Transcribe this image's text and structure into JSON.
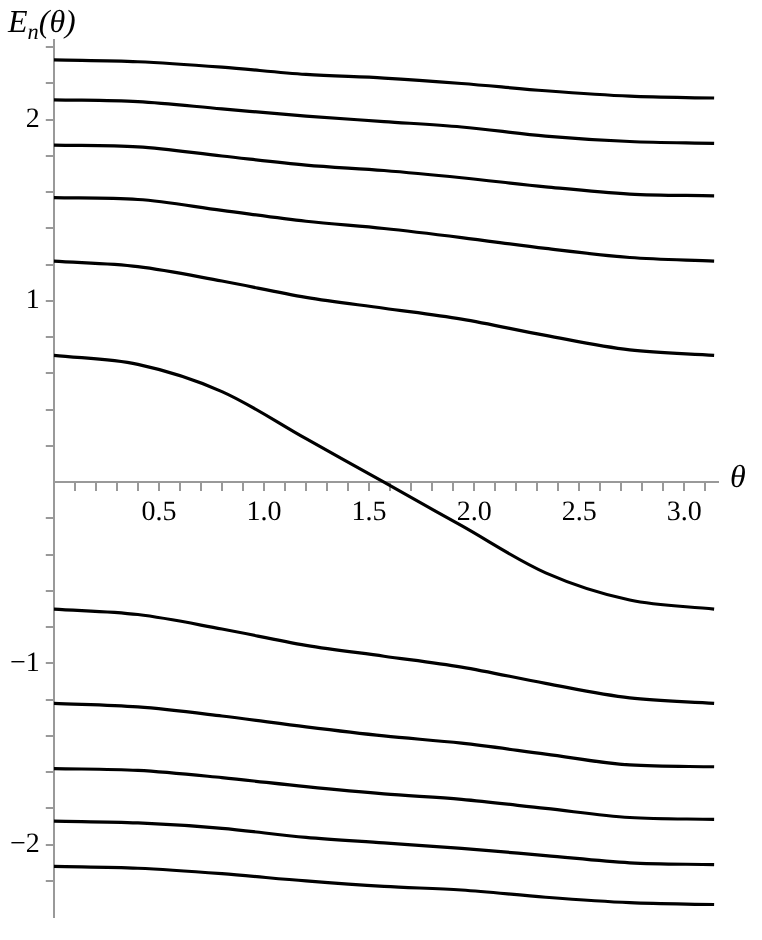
{
  "chart_data": {
    "type": "line",
    "xlabel": "θ",
    "ylabel": "E$_{n}$(θ)",
    "marker": "none",
    "line_style": "solid",
    "x": [
      0,
      0.4,
      0.8,
      1.2,
      1.5708,
      1.94,
      2.34,
      2.74,
      3.1416
    ],
    "xlim": [
      0,
      3.16
    ],
    "ylim": [
      -2.4,
      2.44
    ],
    "xticks": [
      {
        "value": 0.1,
        "label": null
      },
      {
        "value": 0.2,
        "label": null
      },
      {
        "value": 0.3,
        "label": null
      },
      {
        "value": 0.4,
        "label": null
      },
      0.5,
      {
        "value": 0.6,
        "label": null
      },
      {
        "value": 0.7,
        "label": null
      },
      {
        "value": 0.8,
        "label": null
      },
      {
        "value": 0.9,
        "label": null
      },
      {
        "value": 1,
        "label": "1.0"
      },
      {
        "value": 1.1,
        "label": null
      },
      {
        "value": 1.2,
        "label": null
      },
      {
        "value": 1.3,
        "label": null
      },
      {
        "value": 1.4,
        "label": null
      },
      1.5,
      {
        "value": 1.6,
        "label": null
      },
      {
        "value": 1.7,
        "label": null
      },
      {
        "value": 1.8,
        "label": null
      },
      {
        "value": 1.9,
        "label": null
      },
      {
        "value": 2,
        "label": "2.0"
      },
      {
        "value": 2.1,
        "label": null
      },
      {
        "value": 2.2,
        "label": null
      },
      {
        "value": 2.3,
        "label": null
      },
      {
        "value": 2.4,
        "label": null
      },
      2.5,
      {
        "value": 2.6,
        "label": null
      },
      {
        "value": 2.7,
        "label": null
      },
      {
        "value": 2.8,
        "label": null
      },
      {
        "value": 2.9,
        "label": null
      },
      {
        "value": 3,
        "label": "3.0"
      },
      {
        "value": 3.1,
        "label": null
      }
    ],
    "yticks": [
      {
        "value": -2.2,
        "label": null
      },
      {
        "value": -2,
        "label": "−2"
      },
      {
        "value": -1.8,
        "label": null
      },
      {
        "value": -1.6,
        "label": null
      },
      {
        "value": -1.4,
        "label": null
      },
      {
        "value": -1.2,
        "label": null
      },
      {
        "value": -1,
        "label": "−1"
      },
      {
        "value": -0.8,
        "label": null
      },
      {
        "value": -0.6,
        "label": null
      },
      {
        "value": -0.4,
        "label": null
      },
      {
        "value": -0.2,
        "label": null
      },
      {
        "value": 0.2,
        "label": null
      },
      {
        "value": 0.4,
        "label": null
      },
      {
        "value": 0.6,
        "label": null
      },
      {
        "value": 0.8,
        "label": null
      },
      1,
      {
        "value": 1.2,
        "label": null
      },
      {
        "value": 1.4,
        "label": null
      },
      {
        "value": 1.6,
        "label": null
      },
      {
        "value": 1.8,
        "label": null
      },
      2,
      {
        "value": 2.2,
        "label": null
      },
      {
        "value": 2.4,
        "label": null
      }
    ],
    "series": [
      {
        "color": "#000000",
        "values": [
          2.33,
          2.32,
          2.29,
          2.25,
          2.23,
          2.2,
          2.16,
          2.13,
          2.12
        ]
      },
      {
        "color": "#000000",
        "values": [
          2.11,
          2.1,
          2.06,
          2.02,
          1.99,
          1.96,
          1.91,
          1.88,
          1.87
        ]
      },
      {
        "color": "#000000",
        "values": [
          1.86,
          1.85,
          1.8,
          1.75,
          1.72,
          1.68,
          1.63,
          1.59,
          1.58
        ]
      },
      {
        "color": "#000000",
        "values": [
          1.57,
          1.56,
          1.5,
          1.44,
          1.4,
          1.35,
          1.29,
          1.24,
          1.22
        ]
      },
      {
        "color": "#000000",
        "values": [
          1.22,
          1.19,
          1.11,
          1.02,
          0.96,
          0.9,
          0.81,
          0.73,
          0.7
        ]
      },
      {
        "color": "#000000",
        "values": [
          0.7,
          0.65,
          0.5,
          0.24,
          0,
          -0.24,
          -0.5,
          -0.65,
          -0.7
        ]
      },
      {
        "color": "#000000",
        "values": [
          -0.7,
          -0.73,
          -0.81,
          -0.9,
          -0.96,
          -1.02,
          -1.11,
          -1.19,
          -1.22
        ]
      },
      {
        "color": "#000000",
        "values": [
          -1.22,
          -1.24,
          -1.29,
          -1.35,
          -1.4,
          -1.44,
          -1.5,
          -1.56,
          -1.57
        ]
      },
      {
        "color": "#000000",
        "values": [
          -1.58,
          -1.59,
          -1.63,
          -1.68,
          -1.72,
          -1.75,
          -1.8,
          -1.85,
          -1.86
        ]
      },
      {
        "color": "#000000",
        "values": [
          -1.87,
          -1.88,
          -1.91,
          -1.96,
          -1.99,
          -2.02,
          -2.06,
          -2.1,
          -2.11
        ]
      },
      {
        "color": "#000000",
        "values": [
          -2.12,
          -2.13,
          -2.16,
          -2.2,
          -2.23,
          -2.25,
          -2.29,
          -2.32,
          -2.33
        ]
      }
    ]
  }
}
